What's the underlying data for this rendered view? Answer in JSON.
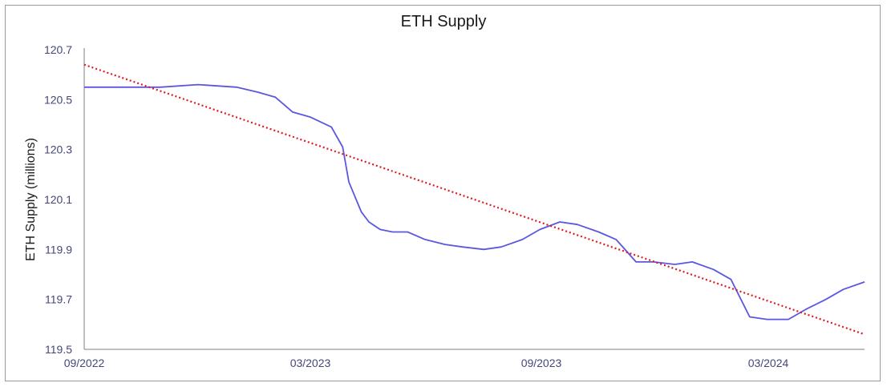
{
  "chart_data": {
    "type": "line",
    "title": "ETH Supply",
    "xlabel": "",
    "ylabel": "ETH Supply (millions)",
    "x_ticks": [
      "09/2022",
      "03/2023",
      "09/2023",
      "03/2024"
    ],
    "y_ticks": [
      "119.5",
      "119.7",
      "119.9",
      "120.1",
      "120.3",
      "120.5",
      "120.7"
    ],
    "ylim": [
      119.5,
      120.7
    ],
    "xlim": [
      "2022-09-15",
      "2024-06-01"
    ],
    "grid": false,
    "legend": "none",
    "series": [
      {
        "color": "#5b57e0",
        "x": [
          "2022-09-15",
          "2022-10-15",
          "2022-11-15",
          "2022-12-15",
          "2023-01-15",
          "2023-02-01",
          "2023-02-15",
          "2023-03-01",
          "2023-03-15",
          "2023-04-01",
          "2023-04-10",
          "2023-04-15",
          "2023-04-25",
          "2023-05-01",
          "2023-05-10",
          "2023-05-20",
          "2023-06-01",
          "2023-06-15",
          "2023-07-01",
          "2023-07-15",
          "2023-08-01",
          "2023-08-15",
          "2023-09-01",
          "2023-09-15",
          "2023-10-01",
          "2023-10-15",
          "2023-11-01",
          "2023-11-15",
          "2023-12-01",
          "2023-12-15",
          "2024-01-01",
          "2024-01-15",
          "2024-02-01",
          "2024-02-15",
          "2024-03-01",
          "2024-03-15",
          "2024-04-01",
          "2024-04-15",
          "2024-05-01",
          "2024-05-15",
          "2024-06-01"
        ],
        "values": [
          120.55,
          120.55,
          120.55,
          120.56,
          120.55,
          120.53,
          120.51,
          120.45,
          120.43,
          120.39,
          120.31,
          120.17,
          120.05,
          120.01,
          119.98,
          119.97,
          119.97,
          119.94,
          119.92,
          119.91,
          119.9,
          119.91,
          119.94,
          119.98,
          120.01,
          120.0,
          119.97,
          119.94,
          119.85,
          119.85,
          119.84,
          119.85,
          119.82,
          119.78,
          119.63,
          119.62,
          119.62,
          119.66,
          119.7,
          119.74,
          119.77
        ]
      },
      {
        "type": "trendline",
        "color": "#e0191e",
        "x": [
          "2022-09-15",
          "2024-06-01"
        ],
        "values": [
          120.64,
          119.56
        ]
      }
    ]
  }
}
